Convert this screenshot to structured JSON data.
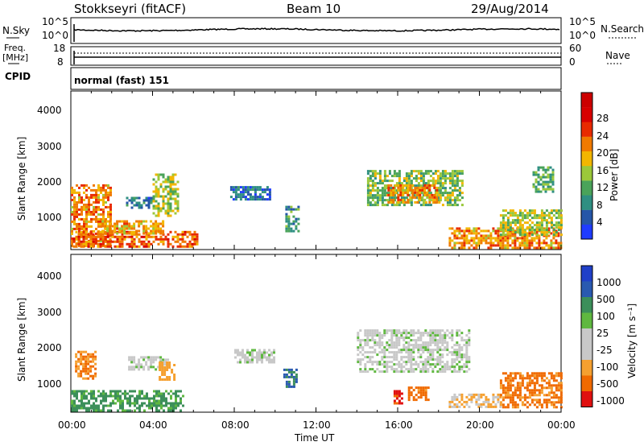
{
  "header": {
    "station": "Stokkseyri (fitACF)",
    "beam": "Beam 10",
    "date": "29/Aug/2014"
  },
  "noise_panel": {
    "left_label": "N.Sky",
    "right_label": "N.Search",
    "ytick_top": "10^5",
    "ytick_bottom": "10^0"
  },
  "freq_panel": {
    "left_label_1": "Freq.",
    "left_label_2": "[MHz]",
    "right_label": "Nave",
    "left_ticks": [
      "18",
      "8"
    ],
    "right_ticks": [
      "60",
      "0"
    ]
  },
  "cpid_panel": {
    "label": "CPID",
    "mode": "normal (fast) 151"
  },
  "colors": {
    "power": [
      "#1f3cff",
      "#2556a8",
      "#2f8f82",
      "#4aa35a",
      "#9bc83a",
      "#f2b600",
      "#f07a00",
      "#e82a00",
      "#d80000"
    ],
    "velocity": [
      "#e01010",
      "#f06a00",
      "#f5a030",
      "#c8c8c8",
      "#c8c8c8",
      "#5fb840",
      "#3c8f5a",
      "#2a5ab0",
      "#2040c8"
    ]
  },
  "chart_data": [
    {
      "type": "heatmap",
      "panel": "power",
      "ylabel": "Slant Range [km]",
      "ylim": [
        180,
        4600
      ],
      "yticks": [
        "1000",
        "2000",
        "3000",
        "4000"
      ],
      "xlim": [
        "00:00",
        "24:00"
      ],
      "colorbar": {
        "label": "Power [dB]",
        "ticks": [
          "4",
          "8",
          "12",
          "16",
          "20",
          "24",
          "28"
        ]
      },
      "echo_regions": [
        {
          "t0": 0.0,
          "t1": 1.9,
          "r0": 250,
          "r1": 2000,
          "level_db": 24
        },
        {
          "t0": 0.1,
          "t1": 6.2,
          "r0": 250,
          "r1": 700,
          "level_db": 26
        },
        {
          "t0": 1.5,
          "t1": 4.5,
          "r0": 650,
          "r1": 1000,
          "level_db": 22
        },
        {
          "t0": 4.0,
          "t1": 5.2,
          "r0": 1100,
          "r1": 2300,
          "level_db": 18
        },
        {
          "t0": 2.7,
          "t1": 3.9,
          "r0": 1350,
          "r1": 1650,
          "level_db": 10
        },
        {
          "t0": 7.8,
          "t1": 9.8,
          "r0": 1550,
          "r1": 1950,
          "level_db": 8
        },
        {
          "t0": 10.5,
          "t1": 11.2,
          "r0": 700,
          "r1": 1400,
          "level_db": 12
        },
        {
          "t0": 14.5,
          "t1": 19.2,
          "r0": 1400,
          "r1": 2400,
          "level_db": 16
        },
        {
          "t0": 15.5,
          "t1": 18.0,
          "r0": 1500,
          "r1": 2000,
          "level_db": 24
        },
        {
          "t0": 18.5,
          "t1": 24.0,
          "r0": 250,
          "r1": 800,
          "level_db": 24
        },
        {
          "t0": 21.0,
          "t1": 24.0,
          "r0": 600,
          "r1": 1300,
          "level_db": 18
        },
        {
          "t0": 22.6,
          "t1": 23.6,
          "r0": 1800,
          "r1": 2500,
          "level_db": 14
        }
      ]
    },
    {
      "type": "heatmap",
      "panel": "velocity",
      "ylabel": "Slant Range [km]",
      "xlabel": "Time UT",
      "ylim": [
        180,
        4600
      ],
      "yticks": [
        "1000",
        "2000",
        "3000",
        "4000"
      ],
      "xlim": [
        "00:00",
        "24:00"
      ],
      "xticks": [
        "00:00",
        "04:00",
        "08:00",
        "12:00",
        "16:00",
        "20:00",
        "00:00"
      ],
      "colorbar": {
        "label": "Velocity [m s⁻¹]",
        "ticks": [
          "1000",
          "500",
          "100",
          "25",
          "-25",
          "-100",
          "-500",
          "-1000"
        ]
      },
      "echo_regions": [
        {
          "t0": 0.0,
          "t1": 5.5,
          "r0": 250,
          "r1": 800,
          "level_ms": 80
        },
        {
          "t0": 0.2,
          "t1": 1.2,
          "r0": 1100,
          "r1": 1900,
          "level_ms": -300
        },
        {
          "t0": 2.8,
          "t1": 4.8,
          "r0": 1400,
          "r1": 1750,
          "level_ms": 0
        },
        {
          "t0": 4.3,
          "t1": 5.1,
          "r0": 1100,
          "r1": 1600,
          "level_ms": -150
        },
        {
          "t0": 8.0,
          "t1": 10.0,
          "r0": 1550,
          "r1": 1950,
          "level_ms": 0
        },
        {
          "t0": 10.4,
          "t1": 11.0,
          "r0": 900,
          "r1": 1400,
          "level_ms": 300
        },
        {
          "t0": 14.0,
          "t1": 19.5,
          "r0": 1300,
          "r1": 2500,
          "level_ms": 0
        },
        {
          "t0": 15.8,
          "t1": 16.2,
          "r0": 400,
          "r1": 800,
          "level_ms": -700
        },
        {
          "t0": 16.5,
          "t1": 17.5,
          "r0": 500,
          "r1": 900,
          "level_ms": -500
        },
        {
          "t0": 18.5,
          "t1": 21.0,
          "r0": 300,
          "r1": 700,
          "level_ms": -60
        },
        {
          "t0": 21.0,
          "t1": 24.0,
          "r0": 300,
          "r1": 1300,
          "level_ms": -400
        }
      ]
    }
  ]
}
